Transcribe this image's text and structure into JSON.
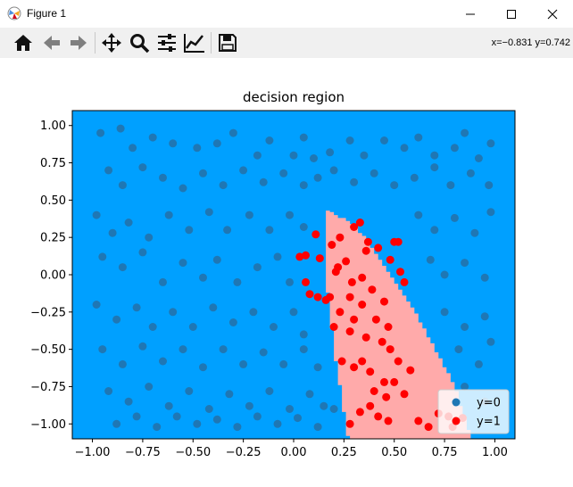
{
  "window": {
    "title": "Figure 1",
    "icon": "matplotlib-icon"
  },
  "window_controls": [
    "minimize-icon",
    "maximize-icon",
    "close-icon"
  ],
  "toolbar": {
    "buttons": [
      "home-icon",
      "back-icon",
      "forward-icon",
      "pan-icon",
      "zoom-icon",
      "configure-subplots-icon",
      "edit-axis-icon",
      "save-icon"
    ],
    "coords": "x=−0.831 y=0.742"
  },
  "colors": {
    "region0": "#00a0ff",
    "region1": "#ffaaaa",
    "class0": "#1f77b4",
    "class1": "#ff0000"
  },
  "chart_data": {
    "type": "scatter",
    "title": "decision region",
    "xlim": [
      -1.1,
      1.1
    ],
    "ylim": [
      -1.1,
      1.1
    ],
    "xticks": [
      "−1.00",
      "−0.75",
      "−0.50",
      "−0.25",
      "0.00",
      "0.25",
      "0.50",
      "0.75",
      "1.00"
    ],
    "yticks": [
      "1.00",
      "0.75",
      "0.50",
      "0.25",
      "0.00",
      "−0.25",
      "−0.50",
      "−0.75",
      "−1.00"
    ],
    "xtick_values": [
      -1,
      -0.75,
      -0.5,
      -0.25,
      0,
      0.25,
      0.5,
      0.75,
      1
    ],
    "ytick_values": [
      1,
      0.75,
      0.5,
      0.25,
      0,
      -0.25,
      -0.5,
      -0.75,
      -1
    ],
    "legend_position": "lower-right",
    "decision_boundary": {
      "y": [
        -1.1,
        -0.75,
        -0.5,
        -0.25,
        0,
        0.25,
        0.32,
        0.43
      ],
      "x_left": [
        0.27,
        0.23,
        0.2,
        0.18,
        0.16,
        0.15,
        0.15,
        0.17
      ],
      "x_right": [
        0.88,
        0.8,
        0.7,
        0.6,
        0.48,
        0.35,
        0.3,
        0.17
      ]
    },
    "series": [
      {
        "name": "y=0",
        "points": [
          [
            -0.96,
            0.95
          ],
          [
            -0.86,
            0.98
          ],
          [
            -0.8,
            0.85
          ],
          [
            -0.7,
            0.92
          ],
          [
            -0.6,
            0.88
          ],
          [
            -0.48,
            0.85
          ],
          [
            -0.38,
            0.88
          ],
          [
            -0.3,
            0.95
          ],
          [
            -0.18,
            0.8
          ],
          [
            -0.12,
            0.9
          ],
          [
            0.0,
            0.8
          ],
          [
            0.05,
            0.92
          ],
          [
            0.1,
            0.78
          ],
          [
            0.18,
            0.82
          ],
          [
            0.28,
            0.9
          ],
          [
            0.35,
            0.8
          ],
          [
            0.45,
            0.9
          ],
          [
            0.55,
            0.85
          ],
          [
            0.62,
            0.92
          ],
          [
            0.7,
            0.8
          ],
          [
            0.8,
            0.85
          ],
          [
            0.85,
            0.95
          ],
          [
            0.92,
            0.78
          ],
          [
            0.98,
            0.88
          ],
          [
            -0.92,
            0.7
          ],
          [
            -0.85,
            0.6
          ],
          [
            -0.75,
            0.72
          ],
          [
            -0.65,
            0.65
          ],
          [
            -0.55,
            0.58
          ],
          [
            -0.45,
            0.68
          ],
          [
            -0.35,
            0.6
          ],
          [
            -0.25,
            0.7
          ],
          [
            -0.15,
            0.62
          ],
          [
            -0.05,
            0.68
          ],
          [
            0.05,
            0.6
          ],
          [
            0.12,
            0.65
          ],
          [
            0.2,
            0.7
          ],
          [
            0.3,
            0.62
          ],
          [
            0.4,
            0.68
          ],
          [
            0.5,
            0.6
          ],
          [
            0.6,
            0.65
          ],
          [
            0.7,
            0.72
          ],
          [
            0.78,
            0.6
          ],
          [
            0.88,
            0.68
          ],
          [
            0.97,
            0.6
          ],
          [
            -0.98,
            0.4
          ],
          [
            -0.9,
            0.28
          ],
          [
            -0.82,
            0.35
          ],
          [
            -0.72,
            0.25
          ],
          [
            -0.62,
            0.4
          ],
          [
            -0.52,
            0.3
          ],
          [
            -0.42,
            0.42
          ],
          [
            -0.33,
            0.3
          ],
          [
            -0.22,
            0.4
          ],
          [
            -0.12,
            0.3
          ],
          [
            -0.02,
            0.4
          ],
          [
            0.05,
            0.32
          ],
          [
            0.62,
            0.4
          ],
          [
            0.7,
            0.3
          ],
          [
            0.8,
            0.38
          ],
          [
            0.9,
            0.28
          ],
          [
            0.98,
            0.42
          ],
          [
            -0.95,
            0.12
          ],
          [
            -0.85,
            0.05
          ],
          [
            -0.75,
            0.15
          ],
          [
            -0.65,
            -0.05
          ],
          [
            -0.55,
            0.08
          ],
          [
            -0.45,
            -0.02
          ],
          [
            -0.38,
            0.1
          ],
          [
            -0.28,
            -0.05
          ],
          [
            -0.18,
            0.05
          ],
          [
            -0.08,
            0.12
          ],
          [
            -0.02,
            -0.05
          ],
          [
            0.68,
            0.1
          ],
          [
            0.75,
            0.0
          ],
          [
            0.85,
            0.08
          ],
          [
            0.95,
            -0.02
          ],
          [
            -0.98,
            -0.2
          ],
          [
            -0.88,
            -0.3
          ],
          [
            -0.78,
            -0.22
          ],
          [
            -0.7,
            -0.35
          ],
          [
            -0.6,
            -0.25
          ],
          [
            -0.5,
            -0.35
          ],
          [
            -0.4,
            -0.22
          ],
          [
            -0.3,
            -0.32
          ],
          [
            -0.2,
            -0.25
          ],
          [
            -0.1,
            -0.35
          ],
          [
            0.0,
            -0.25
          ],
          [
            0.05,
            -0.4
          ],
          [
            0.75,
            -0.25
          ],
          [
            0.85,
            -0.35
          ],
          [
            0.95,
            -0.28
          ],
          [
            -0.95,
            -0.5
          ],
          [
            -0.85,
            -0.6
          ],
          [
            -0.75,
            -0.48
          ],
          [
            -0.65,
            -0.58
          ],
          [
            -0.55,
            -0.5
          ],
          [
            -0.45,
            -0.62
          ],
          [
            -0.35,
            -0.5
          ],
          [
            -0.25,
            -0.6
          ],
          [
            -0.15,
            -0.52
          ],
          [
            -0.05,
            -0.6
          ],
          [
            0.05,
            -0.5
          ],
          [
            0.12,
            -0.62
          ],
          [
            0.82,
            -0.5
          ],
          [
            0.92,
            -0.6
          ],
          [
            0.98,
            -0.45
          ],
          [
            -0.92,
            -0.78
          ],
          [
            -0.82,
            -0.85
          ],
          [
            -0.72,
            -0.75
          ],
          [
            -0.62,
            -0.88
          ],
          [
            -0.52,
            -0.78
          ],
          [
            -0.42,
            -0.9
          ],
          [
            -0.32,
            -0.8
          ],
          [
            -0.22,
            -0.88
          ],
          [
            -0.12,
            -0.78
          ],
          [
            -0.02,
            -0.9
          ],
          [
            0.08,
            -0.8
          ],
          [
            0.15,
            -0.88
          ],
          [
            0.85,
            -0.75
          ],
          [
            0.95,
            -0.85
          ],
          [
            -0.88,
            -1.0
          ],
          [
            -0.78,
            -0.95
          ],
          [
            -0.68,
            -1.02
          ],
          [
            -0.58,
            -0.95
          ],
          [
            -0.48,
            -1.0
          ],
          [
            -0.38,
            -0.97
          ],
          [
            -0.28,
            -1.02
          ],
          [
            -0.18,
            -0.95
          ],
          [
            -0.08,
            -1.0
          ],
          [
            0.02,
            -0.96
          ],
          [
            0.12,
            -1.02
          ],
          [
            0.2,
            -0.9
          ]
        ]
      },
      {
        "name": "y=1",
        "points": [
          [
            0.3,
            0.32
          ],
          [
            0.33,
            0.35
          ],
          [
            0.23,
            0.25
          ],
          [
            0.11,
            0.27
          ],
          [
            0.37,
            0.22
          ],
          [
            0.5,
            0.22
          ],
          [
            0.52,
            0.22
          ],
          [
            0.19,
            0.2
          ],
          [
            0.36,
            0.16
          ],
          [
            0.42,
            0.18
          ],
          [
            0.03,
            0.12
          ],
          [
            0.06,
            0.13
          ],
          [
            0.13,
            0.11
          ],
          [
            0.48,
            0.1
          ],
          [
            0.22,
            0.05
          ],
          [
            0.26,
            0.09
          ],
          [
            0.21,
            0.02
          ],
          [
            0.53,
            0.02
          ],
          [
            0.55,
            -0.05
          ],
          [
            0.34,
            -0.02
          ],
          [
            0.29,
            -0.05
          ],
          [
            0.06,
            -0.05
          ],
          [
            0.39,
            -0.1
          ],
          [
            0.08,
            -0.13
          ],
          [
            0.12,
            -0.15
          ],
          [
            0.16,
            -0.17
          ],
          [
            0.18,
            -0.15
          ],
          [
            0.28,
            -0.15
          ],
          [
            0.34,
            -0.2
          ],
          [
            0.45,
            -0.18
          ],
          [
            0.23,
            -0.25
          ],
          [
            0.3,
            -0.3
          ],
          [
            0.41,
            -0.3
          ],
          [
            0.2,
            -0.35
          ],
          [
            0.28,
            -0.38
          ],
          [
            0.47,
            -0.35
          ],
          [
            0.36,
            -0.42
          ],
          [
            0.44,
            -0.45
          ],
          [
            0.48,
            -0.5
          ],
          [
            0.24,
            -0.58
          ],
          [
            0.34,
            -0.58
          ],
          [
            0.38,
            -0.65
          ],
          [
            0.3,
            -0.62
          ],
          [
            0.52,
            -0.58
          ],
          [
            0.58,
            -0.64
          ],
          [
            0.45,
            -0.72
          ],
          [
            0.5,
            -0.72
          ],
          [
            0.4,
            -0.78
          ],
          [
            0.46,
            -0.82
          ],
          [
            0.55,
            -0.8
          ],
          [
            0.38,
            -0.88
          ],
          [
            0.33,
            -0.92
          ],
          [
            0.42,
            -0.95
          ],
          [
            0.47,
            -0.98
          ],
          [
            0.28,
            -1.0
          ],
          [
            0.62,
            -0.98
          ],
          [
            0.72,
            -0.93
          ],
          [
            0.77,
            -0.95
          ],
          [
            0.67,
            -1.02
          ],
          [
            0.84,
            -0.96
          ],
          [
            0.79,
            -1.02
          ]
        ]
      }
    ]
  }
}
